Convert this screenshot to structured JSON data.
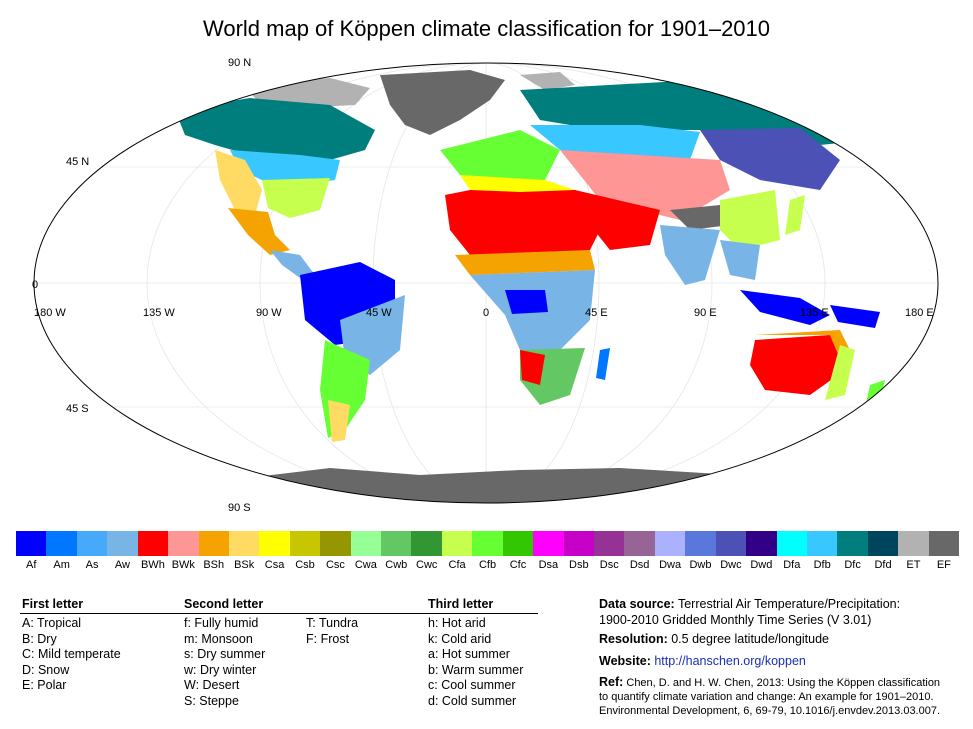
{
  "title": "World map of Köppen climate classification for 1901–2010",
  "axes": {
    "lat_labels": [
      "90 N",
      "45 N",
      "0",
      "45 S",
      "90 S"
    ],
    "lon_labels": [
      "180 W",
      "135 W",
      "90 W",
      "45 W",
      "0",
      "45 E",
      "90 E",
      "135 E",
      "180 E"
    ]
  },
  "legend": [
    {
      "code": "Af",
      "color": "#0000fe"
    },
    {
      "code": "Am",
      "color": "#0077ff"
    },
    {
      "code": "As",
      "color": "#46a9fa"
    },
    {
      "code": "Aw",
      "color": "#78b4e6"
    },
    {
      "code": "BWh",
      "color": "#fe0000"
    },
    {
      "code": "BWk",
      "color": "#fe9695"
    },
    {
      "code": "BSh",
      "color": "#f5a301"
    },
    {
      "code": "BSk",
      "color": "#ffdb63"
    },
    {
      "code": "Csa",
      "color": "#ffff00"
    },
    {
      "code": "Csb",
      "color": "#c6c700"
    },
    {
      "code": "Csc",
      "color": "#969600"
    },
    {
      "code": "Cwa",
      "color": "#96ff96"
    },
    {
      "code": "Cwb",
      "color": "#63c764"
    },
    {
      "code": "Cwc",
      "color": "#329633"
    },
    {
      "code": "Cfa",
      "color": "#c6ff4e"
    },
    {
      "code": "Cfb",
      "color": "#66ff33"
    },
    {
      "code": "Cfc",
      "color": "#33c701"
    },
    {
      "code": "Dsa",
      "color": "#ff00fe"
    },
    {
      "code": "Dsb",
      "color": "#c600c7"
    },
    {
      "code": "Dsc",
      "color": "#963295"
    },
    {
      "code": "Dsd",
      "color": "#966495"
    },
    {
      "code": "Dwa",
      "color": "#abb1ff"
    },
    {
      "code": "Dwb",
      "color": "#5a77db"
    },
    {
      "code": "Dwc",
      "color": "#4c51b5"
    },
    {
      "code": "Dwd",
      "color": "#320087"
    },
    {
      "code": "Dfa",
      "color": "#00ffff"
    },
    {
      "code": "Dfb",
      "color": "#38c7ff"
    },
    {
      "code": "Dfc",
      "color": "#007e7d"
    },
    {
      "code": "Dfd",
      "color": "#00455e"
    },
    {
      "code": "ET",
      "color": "#b2b2b2"
    },
    {
      "code": "EF",
      "color": "#686868"
    }
  ],
  "first_letter": {
    "heading": "First letter",
    "items": [
      "A:  Tropical",
      "B:  Dry",
      "C:  Mild temperate",
      "D:  Snow",
      "E:  Polar"
    ]
  },
  "second_letter": {
    "heading": "Second letter",
    "items_a": [
      "f:   Fully humid",
      "m:  Monsoon",
      "s:   Dry summer",
      "w:  Dry winter",
      "W:  Desert",
      "S:  Steppe"
    ],
    "items_b": [
      "T:   Tundra",
      "F:   Frost"
    ]
  },
  "third_letter": {
    "heading": "Third letter",
    "items": [
      "h:   Hot arid",
      "k:   Cold arid",
      "a:   Hot summer",
      "b:   Warm summer",
      "c:   Cool summer",
      "d:   Cold summer"
    ]
  },
  "info": {
    "source_label": "Data source:",
    "source_text": "Terrestrial Air Temperature/Precipitation:",
    "source_text2": "1900-2010 Gridded Monthly Time Series (V 3.01)",
    "resolution_label": "Resolution:",
    "resolution_text": "0.5 degree latitude/longitude",
    "website_label": "Website:",
    "website_url": "http://hanschen.org/koppen",
    "ref_label": "Ref:",
    "ref_line1": "Chen, D. and H. W. Chen, 2013: Using the Köppen classification",
    "ref_line2": "to quantify climate variation and change: An example for 1901–2010.",
    "ref_line3": "Environmental Development, 6, 69-79, 10.1016/j.envdev.2013.03.007."
  }
}
